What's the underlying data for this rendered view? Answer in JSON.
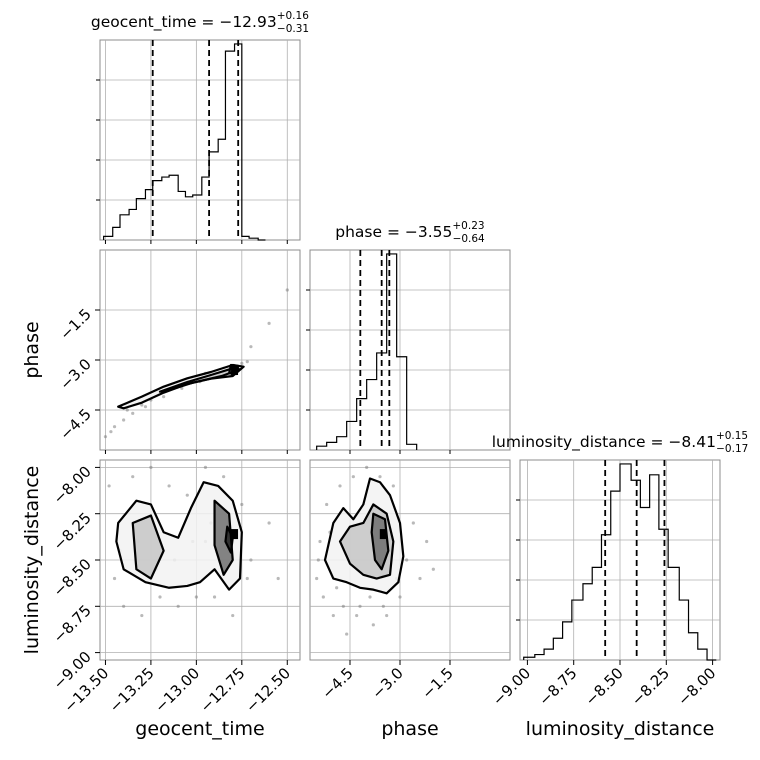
{
  "chart_data": {
    "type": "corner",
    "parameters": [
      {
        "name": "geocent_time",
        "axis_label": "geocent_time",
        "title": {
          "prefix": "geocent_time = ",
          "value": "−12.93",
          "upper": "+0.16",
          "lower": "−0.31"
        },
        "range": [
          -13.53,
          -12.43
        ],
        "ticks": [
          -13.5,
          -13.25,
          -13.0,
          -12.75,
          -12.5
        ],
        "tick_labels": [
          "−13.50",
          "−13.25",
          "−13.00",
          "−12.75",
          "−12.50"
        ],
        "quantiles": [
          -13.24,
          -12.93,
          -12.77
        ],
        "histogram": {
          "edges": [
            -13.51,
            -13.46,
            -13.42,
            -13.37,
            -13.33,
            -13.28,
            -13.24,
            -13.19,
            -13.15,
            -13.1,
            -13.06,
            -13.02,
            -12.97,
            -12.93,
            -12.88,
            -12.84,
            -12.79,
            -12.75,
            -12.71,
            -12.66,
            -12.62
          ],
          "counts": [
            4,
            14,
            28,
            34,
            46,
            56,
            66,
            70,
            72,
            54,
            48,
            50,
            70,
            98,
            112,
            210,
            218,
            4,
            2,
            0
          ]
        }
      },
      {
        "name": "phase",
        "axis_label": "phase",
        "title": {
          "prefix": "phase = ",
          "value": "−3.55",
          "upper": "+0.23",
          "lower": "−0.64"
        },
        "range": [
          -5.7,
          0.3
        ],
        "ticks": [
          -4.5,
          -3.0,
          -1.5
        ],
        "tick_labels": [
          "−4.5",
          "−3.0",
          "−1.5"
        ],
        "quantiles": [
          -4.19,
          -3.55,
          -3.32
        ],
        "histogram": {
          "edges": [
            -5.5,
            -5.2,
            -4.9,
            -4.6,
            -4.3,
            -4.0,
            -3.7,
            -3.4,
            -3.1,
            -2.8,
            -2.5
          ],
          "counts": [
            4,
            8,
            14,
            30,
            54,
            74,
            102,
            206,
            98,
            6
          ]
        }
      },
      {
        "name": "luminosity_distance",
        "axis_label": "luminosity_distance",
        "title": {
          "prefix": "luminosity_distance = ",
          "value": "−8.41",
          "upper": "+0.15",
          "lower": "−0.17"
        },
        "range": [
          -9.04,
          -7.96
        ],
        "ticks": [
          -9.0,
          -8.75,
          -8.5,
          -8.25,
          -8.0
        ],
        "tick_labels": [
          "−9.00",
          "−8.75",
          "−8.50",
          "−8.25",
          "−8.00"
        ],
        "quantiles": [
          -8.58,
          -8.41,
          -8.26
        ],
        "histogram": {
          "edges": [
            -9.02,
            -8.96,
            -8.91,
            -8.86,
            -8.81,
            -8.76,
            -8.7,
            -8.65,
            -8.6,
            -8.55,
            -8.5,
            -8.44,
            -8.39,
            -8.34,
            -8.29,
            -8.24,
            -8.18,
            -8.13,
            -8.08,
            -8.03,
            -7.98
          ],
          "counts": [
            1,
            2,
            4,
            8,
            14,
            22,
            28,
            34,
            46,
            62,
            72,
            66,
            56,
            68,
            48,
            34,
            22,
            10,
            4,
            0
          ]
        }
      }
    ],
    "pairs": [
      {
        "x": "geocent_time",
        "y": "phase",
        "density_peak": [
          -12.79,
          -3.3
        ],
        "contours": [
          [
            [
              -13.43,
              -4.4
            ],
            [
              -13.3,
              -4.1
            ],
            [
              -13.18,
              -3.8
            ],
            [
              -13.05,
              -3.55
            ],
            [
              -12.92,
              -3.36
            ],
            [
              -12.8,
              -3.15
            ],
            [
              -12.74,
              -3.2
            ],
            [
              -12.8,
              -3.48
            ],
            [
              -12.92,
              -3.56
            ],
            [
              -13.05,
              -3.72
            ],
            [
              -13.18,
              -3.98
            ],
            [
              -13.3,
              -4.28
            ],
            [
              -13.4,
              -4.45
            ]
          ],
          [
            [
              -13.2,
              -3.95
            ],
            [
              -13.05,
              -3.66
            ],
            [
              -12.92,
              -3.45
            ],
            [
              -12.8,
              -3.25
            ],
            [
              -12.76,
              -3.28
            ],
            [
              -12.86,
              -3.48
            ],
            [
              -13.02,
              -3.68
            ],
            [
              -13.16,
              -3.92
            ]
          ],
          [
            [
              -12.81,
              -3.15
            ],
            [
              -12.77,
              -3.18
            ],
            [
              -12.78,
              -3.42
            ],
            [
              -12.82,
              -3.4
            ]
          ]
        ],
        "scatter": [
          [
            -13.5,
            -5.3
          ],
          [
            -13.45,
            -5.0
          ],
          [
            -13.4,
            -4.8
          ],
          [
            -13.35,
            -4.6
          ],
          [
            -13.3,
            -4.35
          ],
          [
            -13.25,
            -4.2
          ],
          [
            -13.2,
            -4.0
          ],
          [
            -13.15,
            -3.9
          ],
          [
            -13.1,
            -3.75
          ],
          [
            -13.05,
            -3.6
          ],
          [
            -13.0,
            -3.5
          ],
          [
            -12.95,
            -3.4
          ],
          [
            -12.9,
            -3.35
          ],
          [
            -12.85,
            -3.25
          ],
          [
            -12.8,
            -3.2
          ],
          [
            -12.75,
            -3.1
          ],
          [
            -12.7,
            -2.6
          ],
          [
            -12.6,
            -1.9
          ],
          [
            -12.5,
            -0.9
          ],
          [
            -13.47,
            -5.15
          ],
          [
            -13.38,
            -4.5
          ],
          [
            -13.28,
            -4.4
          ],
          [
            -13.18,
            -4.1
          ],
          [
            -13.08,
            -3.85
          ],
          [
            -12.98,
            -3.65
          ],
          [
            -12.88,
            -3.45
          ],
          [
            -12.78,
            -3.35
          ],
          [
            -12.72,
            -3.05
          ]
        ]
      },
      {
        "x": "geocent_time",
        "y": "luminosity_distance",
        "density_peak": [
          -12.79,
          -8.36
        ],
        "contours": [
          [
            [
              -13.43,
              -8.3
            ],
            [
              -13.33,
              -8.18
            ],
            [
              -13.25,
              -8.2
            ],
            [
              -13.18,
              -8.35
            ],
            [
              -13.1,
              -8.38
            ],
            [
              -13.03,
              -8.22
            ],
            [
              -12.96,
              -8.08
            ],
            [
              -12.88,
              -8.1
            ],
            [
              -12.8,
              -8.18
            ],
            [
              -12.75,
              -8.35
            ],
            [
              -12.76,
              -8.6
            ],
            [
              -12.82,
              -8.66
            ],
            [
              -12.9,
              -8.55
            ],
            [
              -12.98,
              -8.62
            ],
            [
              -13.05,
              -8.64
            ],
            [
              -13.15,
              -8.65
            ],
            [
              -13.28,
              -8.62
            ],
            [
              -13.4,
              -8.55
            ],
            [
              -13.44,
              -8.4
            ]
          ],
          [
            [
              -13.35,
              -8.3
            ],
            [
              -13.25,
              -8.26
            ],
            [
              -13.18,
              -8.45
            ],
            [
              -13.25,
              -8.6
            ],
            [
              -13.33,
              -8.55
            ]
          ],
          [
            [
              -12.9,
              -8.18
            ],
            [
              -12.82,
              -8.25
            ],
            [
              -12.8,
              -8.5
            ],
            [
              -12.85,
              -8.58
            ],
            [
              -12.9,
              -8.42
            ]
          ],
          [
            [
              -12.83,
              -8.32
            ],
            [
              -12.8,
              -8.38
            ],
            [
              -12.81,
              -8.46
            ],
            [
              -12.84,
              -8.4
            ]
          ]
        ],
        "scatter": [
          [
            -13.48,
            -8.1
          ],
          [
            -13.45,
            -8.6
          ],
          [
            -13.4,
            -8.75
          ],
          [
            -13.3,
            -8.8
          ],
          [
            -13.2,
            -8.7
          ],
          [
            -13.1,
            -8.75
          ],
          [
            -13.0,
            -8.7
          ],
          [
            -12.95,
            -8.4
          ],
          [
            -12.9,
            -8.7
          ],
          [
            -12.8,
            -8.8
          ],
          [
            -12.7,
            -8.5
          ],
          [
            -12.6,
            -8.3
          ],
          [
            -12.55,
            -8.6
          ],
          [
            -13.35,
            -8.05
          ],
          [
            -13.25,
            -8.0
          ],
          [
            -13.15,
            -8.1
          ],
          [
            -13.05,
            -8.15
          ],
          [
            -12.95,
            -8.0
          ],
          [
            -12.85,
            -8.05
          ],
          [
            -12.75,
            -8.2
          ],
          [
            -13.42,
            -8.45
          ],
          [
            -13.32,
            -8.4
          ],
          [
            -13.22,
            -8.55
          ],
          [
            -13.12,
            -8.5
          ],
          [
            -13.02,
            -8.4
          ],
          [
            -12.92,
            -8.3
          ],
          [
            -12.82,
            -8.45
          ],
          [
            -12.72,
            -8.6
          ]
        ]
      },
      {
        "x": "phase",
        "y": "luminosity_distance",
        "density_peak": [
          -3.5,
          -8.36
        ],
        "contours": [
          [
            [
              -5.25,
              -8.5
            ],
            [
              -5.0,
              -8.3
            ],
            [
              -4.7,
              -8.22
            ],
            [
              -4.4,
              -8.28
            ],
            [
              -4.1,
              -8.2
            ],
            [
              -3.9,
              -8.06
            ],
            [
              -3.6,
              -8.08
            ],
            [
              -3.3,
              -8.15
            ],
            [
              -3.0,
              -8.3
            ],
            [
              -2.9,
              -8.48
            ],
            [
              -3.05,
              -8.62
            ],
            [
              -3.4,
              -8.68
            ],
            [
              -3.8,
              -8.66
            ],
            [
              -4.2,
              -8.65
            ],
            [
              -4.6,
              -8.62
            ],
            [
              -5.0,
              -8.6
            ]
          ],
          [
            [
              -4.8,
              -8.4
            ],
            [
              -4.5,
              -8.32
            ],
            [
              -4.1,
              -8.3
            ],
            [
              -3.8,
              -8.2
            ],
            [
              -3.4,
              -8.25
            ],
            [
              -3.2,
              -8.4
            ],
            [
              -3.3,
              -8.58
            ],
            [
              -3.7,
              -8.6
            ],
            [
              -4.1,
              -8.58
            ],
            [
              -4.5,
              -8.52
            ]
          ],
          [
            [
              -3.8,
              -8.25
            ],
            [
              -3.45,
              -8.28
            ],
            [
              -3.35,
              -8.45
            ],
            [
              -3.55,
              -8.55
            ],
            [
              -3.75,
              -8.5
            ],
            [
              -3.85,
              -8.35
            ]
          ]
        ],
        "scatter": [
          [
            -5.5,
            -8.6
          ],
          [
            -5.4,
            -8.4
          ],
          [
            -5.3,
            -8.7
          ],
          [
            -5.2,
            -8.2
          ],
          [
            -5.0,
            -8.8
          ],
          [
            -4.8,
            -8.1
          ],
          [
            -4.6,
            -8.9
          ],
          [
            -4.4,
            -8.05
          ],
          [
            -4.2,
            -8.75
          ],
          [
            -4.0,
            -8.0
          ],
          [
            -3.8,
            -8.85
          ],
          [
            -3.6,
            -8.05
          ],
          [
            -3.4,
            -8.8
          ],
          [
            -3.2,
            -8.1
          ],
          [
            -3.0,
            -8.7
          ],
          [
            -2.8,
            -8.5
          ],
          [
            -2.6,
            -8.3
          ],
          [
            -2.4,
            -8.6
          ],
          [
            -2.2,
            -8.4
          ],
          [
            -2.0,
            -8.55
          ],
          [
            -5.45,
            -8.5
          ],
          [
            -5.1,
            -8.35
          ],
          [
            -4.9,
            -8.65
          ],
          [
            -4.7,
            -8.75
          ],
          [
            -4.3,
            -8.8
          ],
          [
            -3.9,
            -8.7
          ],
          [
            -3.5,
            -8.75
          ],
          [
            -3.1,
            -8.6
          ]
        ]
      }
    ],
    "style": {
      "line_color": "#000000",
      "grid": true,
      "grid_color": "#b0b0b0",
      "frame_color": "#8c8c8c",
      "scatter_color": "#7f7f7f"
    }
  }
}
